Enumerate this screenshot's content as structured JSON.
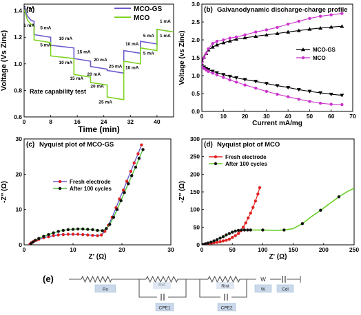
{
  "chart_data": [
    {
      "type": "line",
      "panel_label": "(a)",
      "annotation": "Rate capability test",
      "xlabel": "Time (min)",
      "ylabel": "Voltage (Vs Zinc)",
      "xlim": [
        0,
        45
      ],
      "ylim": [
        0.6,
        1.45
      ],
      "xticks": [
        0,
        8,
        16,
        24,
        32,
        40
      ],
      "yticks": [
        0.6,
        0.8,
        1.0,
        1.2,
        1.4
      ],
      "legend": "top-right",
      "series": [
        {
          "name": "MCO-GS",
          "color": "#6a5acd",
          "x": [
            0,
            1,
            2,
            3,
            3,
            8,
            8,
            15,
            15,
            20,
            20,
            25,
            25,
            30,
            30,
            35,
            35,
            40,
            40,
            45
          ],
          "y": [
            1.43,
            1.36,
            1.33,
            1.32,
            1.22,
            1.2,
            1.14,
            1.12,
            1.04,
            1.02,
            0.98,
            0.96,
            0.95,
            0.93,
            1.1,
            1.08,
            1.17,
            1.15,
            1.26,
            1.24
          ]
        },
        {
          "name": "MCO",
          "color": "#7ed321",
          "x": [
            0,
            1,
            2,
            3,
            3,
            8,
            8,
            15,
            15,
            20,
            20,
            25,
            25,
            30,
            30,
            35,
            35,
            40,
            40,
            45
          ],
          "y": [
            1.41,
            1.33,
            1.3,
            1.29,
            1.18,
            1.16,
            1.06,
            1.04,
            0.92,
            0.9,
            0.86,
            0.84,
            0.75,
            0.73,
            1.02,
            1.0,
            1.12,
            1.1,
            1.26,
            1.24
          ]
        }
      ],
      "annotations": [
        {
          "text": "1 mA",
          "x": 1.5,
          "y": 1.41
        },
        {
          "text": "1 mA",
          "x": 1.5,
          "y": 1.28
        },
        {
          "text": "5 mA",
          "x": 6.5,
          "y": 1.26
        },
        {
          "text": "5 mA",
          "x": 6.5,
          "y": 1.13
        },
        {
          "text": "10 mA",
          "x": 12.5,
          "y": 1.18
        },
        {
          "text": "10 mA",
          "x": 12.5,
          "y": 1.0
        },
        {
          "text": "15 mA",
          "x": 18.0,
          "y": 1.08
        },
        {
          "text": "15 mA",
          "x": 15.8,
          "y": 0.88
        },
        {
          "text": "20 mA",
          "x": 23.0,
          "y": 1.02
        },
        {
          "text": "20 mA",
          "x": 21.0,
          "y": 0.91
        },
        {
          "text": "25 mA",
          "x": 27.5,
          "y": 0.97
        },
        {
          "text": "25 mA",
          "x": 24.5,
          "y": 0.7
        },
        {
          "text": "20 mA",
          "x": 22.0,
          "y": 0.82
        },
        {
          "text": "10 mA",
          "x": 32.5,
          "y": 1.14
        },
        {
          "text": "10 mA",
          "x": 32.5,
          "y": 0.96
        },
        {
          "text": "5 mA",
          "x": 37.5,
          "y": 1.2
        },
        {
          "text": "5 mA",
          "x": 37.5,
          "y": 1.07
        },
        {
          "text": "1 mA",
          "x": 42.5,
          "y": 1.31
        },
        {
          "text": "1 mA",
          "x": 42.5,
          "y": 1.2
        }
      ]
    },
    {
      "type": "line",
      "panel_label": "(b)",
      "title": "Galvanodynamic discharge-charge profile",
      "xlabel": "Current mA/mg",
      "ylabel": "Voltage (vs Zinc)",
      "xlim": [
        0,
        70
      ],
      "ylim": [
        0,
        3.0
      ],
      "xticks": [
        0,
        10,
        20,
        30,
        40,
        50,
        60,
        70
      ],
      "yticks": [
        0.0,
        0.5,
        1.0,
        1.5,
        2.0,
        2.5,
        3.0
      ],
      "legend": "center-right",
      "series": [
        {
          "name": "MCO-GS",
          "color": "#000000",
          "marker": "triangle-up",
          "x": [
            0,
            1,
            2,
            3,
            5,
            7,
            10,
            13,
            16,
            20,
            25,
            30,
            35,
            40,
            45,
            50,
            55,
            60,
            65
          ],
          "y": [
            1.42,
            1.52,
            1.62,
            1.72,
            1.8,
            1.86,
            1.92,
            1.97,
            2.02,
            2.06,
            2.1,
            2.14,
            2.18,
            2.22,
            2.26,
            2.3,
            2.33,
            2.36,
            2.38
          ]
        },
        {
          "name": "MCO-GS",
          "color": "#000000",
          "marker": "triangle-down",
          "x": [
            0,
            1,
            2,
            3,
            5,
            7,
            10,
            13,
            16,
            20,
            25,
            30,
            35,
            40,
            45,
            50,
            55,
            60,
            65
          ],
          "y": [
            1.28,
            1.24,
            1.2,
            1.17,
            1.12,
            1.08,
            1.03,
            0.98,
            0.94,
            0.89,
            0.84,
            0.78,
            0.72,
            0.67,
            0.61,
            0.56,
            0.52,
            0.48,
            0.45
          ]
        },
        {
          "name": "MCO",
          "color": "#cc33cc",
          "marker": "circle",
          "x": [
            0,
            1,
            2,
            3,
            5,
            7,
            10,
            13,
            16,
            20,
            25,
            30,
            35,
            40,
            45,
            50,
            55,
            60,
            65
          ],
          "y": [
            1.35,
            1.5,
            1.62,
            1.75,
            1.9,
            1.96,
            2.0,
            2.05,
            2.08,
            2.14,
            2.22,
            2.28,
            2.35,
            2.44,
            2.52,
            2.6,
            2.66,
            2.7,
            2.74
          ]
        },
        {
          "name": "MCO",
          "color": "#cc33cc",
          "marker": "circle",
          "x": [
            0,
            1,
            2,
            3,
            5,
            7,
            10,
            13,
            16,
            20,
            25,
            30,
            35,
            40,
            45,
            50,
            55,
            60,
            65
          ],
          "y": [
            1.25,
            1.2,
            1.16,
            1.12,
            1.07,
            1.02,
            0.95,
            0.88,
            0.82,
            0.74,
            0.65,
            0.56,
            0.48,
            0.41,
            0.34,
            0.28,
            0.23,
            0.2,
            0.19
          ]
        }
      ]
    },
    {
      "type": "scatter",
      "panel_label": "(c)",
      "title": "Nyquist plot of MCO-GS",
      "xlabel": "Z' (Ω)",
      "ylabel": "-Z'' (Ω)",
      "xlim": [
        0,
        30
      ],
      "ylim": [
        0,
        30
      ],
      "xticks": [
        0,
        10,
        20,
        30
      ],
      "yticks": [
        0,
        10,
        20,
        30
      ],
      "legend": "center",
      "series": [
        {
          "name": "Fresh electrode",
          "color": "#e02020",
          "fit_color": "#6a5acd",
          "x": [
            1.2,
            1.5,
            2,
            2.5,
            3,
            4,
            5,
            6,
            7,
            8,
            9,
            10,
            11,
            12,
            13,
            14,
            15,
            15.8,
            16.5,
            17.2,
            18,
            18.8,
            19.5,
            20.3,
            21,
            21.8,
            22.5,
            23.3,
            24
          ],
          "y": [
            0.2,
            0.6,
            1.0,
            1.3,
            1.6,
            2.0,
            2.3,
            2.6,
            2.8,
            2.9,
            3.0,
            3.0,
            3.0,
            2.9,
            2.8,
            2.7,
            2.6,
            2.8,
            3.8,
            5.5,
            7.8,
            10.5,
            13.0,
            15.5,
            18.0,
            20.8,
            23.2,
            25.8,
            28.3
          ]
        },
        {
          "name": "After 100 cycles",
          "color": "#111111",
          "fit_color": "#4cc23a",
          "x": [
            1.4,
            1.8,
            2.3,
            3,
            4,
            5,
            6,
            7,
            8,
            9,
            10,
            11,
            12,
            13,
            14,
            15,
            16,
            16.8,
            17.5,
            18.3,
            19,
            19.8,
            20.5,
            21.3,
            22,
            22.8,
            23.5,
            24.3
          ],
          "y": [
            0.3,
            0.8,
            1.3,
            1.8,
            2.4,
            2.9,
            3.4,
            3.8,
            4.1,
            4.3,
            4.4,
            4.5,
            4.5,
            4.4,
            4.3,
            4.1,
            4.0,
            4.6,
            5.8,
            7.8,
            10.0,
            12.5,
            14.8,
            17.3,
            19.6,
            22.0,
            24.5,
            27.0
          ]
        }
      ]
    },
    {
      "type": "scatter",
      "panel_label": "(d)",
      "title": "Nyquist plot of MCO",
      "xlabel": "Z' (Ω)",
      "ylabel": "-Z'' (Ω)",
      "xlim": [
        0,
        250
      ],
      "ylim": [
        0,
        300
      ],
      "xticks": [
        0,
        50,
        100,
        150,
        200,
        250
      ],
      "yticks": [
        0,
        50,
        100,
        150,
        200,
        250,
        300
      ],
      "legend": "top-left",
      "series": [
        {
          "name": "Fresh electrode",
          "color": "#e02020",
          "x": [
            2,
            5,
            8,
            12,
            16,
            20,
            25,
            30,
            35,
            40,
            45,
            50,
            55,
            60,
            64,
            68,
            72,
            76,
            80,
            84,
            88,
            92,
            95
          ],
          "y": [
            1,
            2,
            3,
            4,
            5,
            6,
            7,
            9,
            11,
            13,
            16,
            21,
            26,
            32,
            40,
            50,
            62,
            76,
            90,
            106,
            124,
            144,
            162
          ]
        },
        {
          "name": "After 100 cycles",
          "color": "#111111",
          "fit_color": "#6bcf2a",
          "x": [
            2,
            6,
            10,
            15,
            20,
            25,
            30,
            35,
            40,
            45,
            50,
            55,
            60,
            65,
            70,
            75,
            80
          ],
          "y": [
            1,
            3,
            5,
            8,
            11,
            15,
            19,
            23,
            28,
            32,
            36,
            39,
            41,
            42,
            42,
            42,
            42
          ],
          "fit_x": [
            80,
            100,
            120,
            135,
            150,
            165,
            180,
            195,
            210,
            225,
            240,
            250
          ],
          "fit_y": [
            42,
            42,
            41,
            42,
            46,
            60,
            80,
            98,
            117,
            136,
            152,
            160
          ]
        }
      ]
    }
  ],
  "circuit": {
    "panel_label": "(e)",
    "elements": [
      "Rs",
      "Rct",
      "Rint",
      "W",
      "Cdl"
    ],
    "label_boxes": [
      "Rs",
      "CPE1",
      "CPE2",
      "W",
      "Cdl"
    ]
  }
}
